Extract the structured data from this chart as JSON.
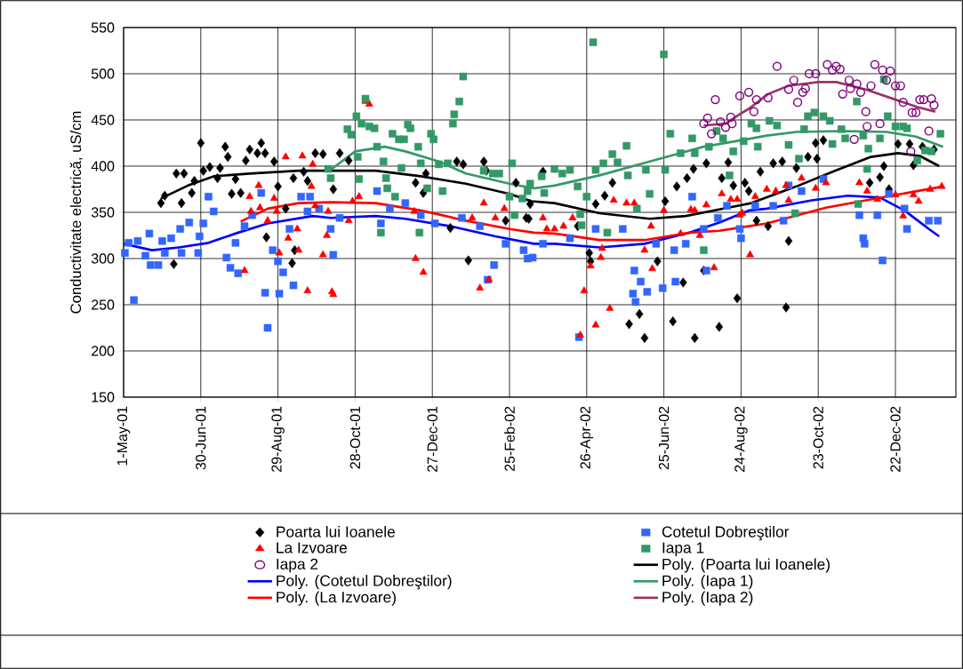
{
  "chart_data": {
    "type": "scatter",
    "ylabel": "Conductivitate electrică, uS/cm",
    "xlim": [
      "2001-05-01",
      "2003-02-07"
    ],
    "ylim": [
      150,
      550
    ],
    "xticks": [
      {
        "value": "2001-05-01",
        "label": "1-May-01"
      },
      {
        "value": "2001-06-30",
        "label": "30-Jun-01"
      },
      {
        "value": "2001-08-29",
        "label": "29-Aug-01"
      },
      {
        "value": "2001-10-28",
        "label": "28-Oct-01"
      },
      {
        "value": "2001-12-27",
        "label": "27-Dec-01"
      },
      {
        "value": "2002-02-25",
        "label": "25-Feb-02"
      },
      {
        "value": "2002-04-26",
        "label": "26-Apr-02"
      },
      {
        "value": "2002-06-25",
        "label": "25-Jun-02"
      },
      {
        "value": "2002-08-24",
        "label": "24-Aug-02"
      },
      {
        "value": "2002-10-23",
        "label": "23-Oct-02"
      },
      {
        "value": "2002-12-22",
        "label": "22-Dec-02"
      }
    ],
    "yticks": [
      150,
      200,
      250,
      300,
      350,
      400,
      450,
      500,
      550
    ],
    "grid": true,
    "legend": "bottom",
    "series": [
      {
        "name": "Poarta lui Ioanele",
        "marker": "diamond",
        "color": "#000000",
        "x": [
          "2001-05-30",
          "2001-06-02",
          "2001-06-09",
          "2001-06-11",
          "2001-06-15",
          "2001-06-17",
          "2001-06-23",
          "2001-06-25",
          "2001-06-30",
          "2001-07-02",
          "2001-07-07",
          "2001-07-13",
          "2001-07-15",
          "2001-07-19",
          "2001-07-21",
          "2001-07-24",
          "2001-07-27",
          "2001-07-31",
          "2001-08-04",
          "2001-08-07",
          "2001-08-13",
          "2001-08-16",
          "2001-08-19",
          "2001-08-20",
          "2001-08-26",
          "2001-08-29",
          "2001-09-04",
          "2001-09-09",
          "2001-09-10",
          "2001-09-11",
          "2001-09-18",
          "2001-09-21",
          "2001-09-27",
          "2001-10-03",
          "2001-10-11",
          "2001-10-16",
          "2001-10-23",
          "2001-12-14",
          "2001-12-20",
          "2001-12-22",
          "2002-01-10",
          "2002-01-15",
          "2002-01-20",
          "2002-01-24",
          "2002-02-05",
          "2002-02-07",
          "2002-02-22",
          "2002-03-02",
          "2002-03-10",
          "2002-03-12",
          "2002-03-13",
          "2002-03-23",
          "2002-04-19",
          "2002-04-28",
          "2002-04-29",
          "2002-05-03",
          "2002-05-10",
          "2002-05-16",
          "2002-05-29",
          "2002-06-06",
          "2002-06-10",
          "2002-06-20",
          "2002-06-26",
          "2002-07-02",
          "2002-07-05",
          "2002-07-10",
          "2002-07-13",
          "2002-07-18",
          "2002-07-19",
          "2002-07-26",
          "2002-07-28",
          "2002-08-07",
          "2002-08-09",
          "2002-08-14",
          "2002-08-18",
          "2002-08-21",
          "2002-08-27",
          "2002-08-30",
          "2002-09-05",
          "2002-09-08",
          "2002-09-14",
          "2002-09-18",
          "2002-09-25",
          "2002-09-28",
          "2002-09-30",
          "2002-10-06",
          "2002-10-15",
          "2002-10-21",
          "2002-10-22",
          "2002-10-27",
          "2002-12-02",
          "2002-12-10",
          "2002-12-13",
          "2002-12-17",
          "2002-12-24",
          "2003-01-02",
          "2003-01-05",
          "2003-01-12",
          "2003-01-21"
        ],
        "values": [
          360,
          368,
          294,
          392,
          360,
          392,
          371,
          384,
          425,
          395,
          399,
          387,
          398,
          421,
          410,
          370,
          386,
          371,
          406,
          418,
          414,
          425,
          414,
          323,
          405,
          378,
          354,
          295,
          387,
          309,
          394,
          384,
          414,
          413,
          375,
          414,
          406,
          382,
          371,
          392,
          333,
          405,
          402,
          298,
          405,
          395,
          341,
          382,
          344,
          343,
          359,
          394,
          335,
          306,
          297,
          359,
          368,
          382,
          229,
          240,
          214,
          297,
          362,
          232,
          378,
          274,
          387,
          397,
          214,
          287,
          403,
          226,
          387,
          404,
          379,
          257,
          382,
          373,
          341,
          394,
          335,
          403,
          405,
          247,
          319,
          398,
          410,
          425,
          408,
          428,
          382,
          388,
          400,
          375,
          424,
          424,
          401,
          421,
          418
        ]
      },
      {
        "name": "Cotetul Dobreştilor",
        "marker": "square",
        "color": "#3366ff",
        "x": [
          "2001-05-02",
          "2001-05-05",
          "2001-05-09",
          "2001-05-12",
          "2001-05-18",
          "2001-05-21",
          "2001-05-22",
          "2001-05-28",
          "2001-05-31",
          "2001-06-02",
          "2001-06-07",
          "2001-06-14",
          "2001-06-15",
          "2001-06-21",
          "2001-06-28",
          "2001-06-29",
          "2001-07-02",
          "2001-07-06",
          "2001-07-10",
          "2001-07-20",
          "2001-07-23",
          "2001-07-27",
          "2001-07-29",
          "2001-08-03",
          "2001-08-09",
          "2001-08-16",
          "2001-08-19",
          "2001-08-21",
          "2001-08-25",
          "2001-08-29",
          "2001-08-30",
          "2001-09-02",
          "2001-09-07",
          "2001-09-10",
          "2001-09-16",
          "2001-09-21",
          "2001-09-23",
          "2001-09-30",
          "2001-10-09",
          "2001-10-11",
          "2001-10-16",
          "2001-11-14",
          "2001-11-17",
          "2001-11-24",
          "2001-12-06",
          "2001-12-18",
          "2001-12-29",
          "2002-01-19",
          "2002-02-02",
          "2002-02-08",
          "2002-02-13",
          "2002-02-22",
          "2002-03-08",
          "2002-03-11",
          "2002-03-15",
          "2002-03-23",
          "2002-04-13",
          "2002-04-20",
          "2002-05-03",
          "2002-05-24",
          "2002-06-01",
          "2002-06-02",
          "2002-06-03",
          "2002-06-07",
          "2002-06-12",
          "2002-06-19",
          "2002-06-24",
          "2002-07-03",
          "2002-07-04",
          "2002-07-12",
          "2002-07-17",
          "2002-07-26",
          "2002-07-28",
          "2002-08-06",
          "2002-08-13",
          "2002-08-23",
          "2002-08-24",
          "2002-09-04",
          "2002-09-18",
          "2002-09-26",
          "2002-09-30",
          "2002-10-10",
          "2002-10-27",
          "2002-11-24",
          "2002-11-27",
          "2002-11-28",
          "2002-12-08",
          "2002-12-12",
          "2002-12-17",
          "2002-12-29",
          "2002-12-31",
          "2003-01-17",
          "2003-01-24"
        ],
        "values": [
          306,
          317,
          255,
          319,
          303,
          327,
          293,
          293,
          319,
          306,
          322,
          332,
          306,
          339,
          306,
          324,
          338,
          367,
          351,
          301,
          290,
          317,
          284,
          335,
          347,
          371,
          263,
          225,
          309,
          297,
          262,
          285,
          332,
          271,
          367,
          351,
          367,
          354,
          332,
          304,
          344,
          373,
          338,
          354,
          360,
          347,
          338,
          344,
          335,
          277,
          293,
          316,
          309,
          300,
          301,
          316,
          322,
          215,
          332,
          332,
          262,
          287,
          253,
          275,
          264,
          316,
          268,
          309,
          275,
          316,
          367,
          332,
          287,
          344,
          357,
          332,
          322,
          357,
          357,
          341,
          379,
          373,
          386,
          347,
          322,
          316,
          347,
          298,
          370,
          354,
          332,
          341,
          341
        ]
      },
      {
        "name": "La Izvoare",
        "marker": "triangle",
        "color": "#ff0000",
        "x": [
          "2001-08-03",
          "2001-08-07",
          "2001-08-08",
          "2001-08-14",
          "2001-08-15",
          "2001-08-21",
          "2001-08-26",
          "2001-08-28",
          "2001-08-30",
          "2001-09-04",
          "2001-09-06",
          "2001-09-13",
          "2001-09-14",
          "2001-09-17",
          "2001-09-21",
          "2001-09-24",
          "2001-09-25",
          "2001-09-27",
          "2001-10-03",
          "2001-10-06",
          "2001-10-07",
          "2001-10-10",
          "2001-10-11",
          "2001-10-23",
          "2001-10-26",
          "2001-10-31",
          "2001-11-05",
          "2001-11-08",
          "2001-12-13",
          "2001-12-14",
          "2001-12-20",
          "2002-01-27",
          "2002-02-02",
          "2002-02-05",
          "2002-02-09",
          "2002-02-14",
          "2002-02-21",
          "2002-03-23",
          "2002-03-26",
          "2002-04-01",
          "2002-04-08",
          "2002-04-15",
          "2002-04-21",
          "2002-04-24",
          "2002-04-29",
          "2002-05-03",
          "2002-05-07",
          "2002-05-08",
          "2002-05-14",
          "2002-05-17",
          "2002-05-27",
          "2002-06-02",
          "2002-06-10",
          "2002-06-15",
          "2002-06-16",
          "2002-06-25",
          "2002-07-08",
          "2002-07-16",
          "2002-07-19",
          "2002-07-23",
          "2002-07-28",
          "2002-08-03",
          "2002-08-09",
          "2002-08-16",
          "2002-08-21",
          "2002-08-23",
          "2002-08-25",
          "2002-08-31",
          "2002-09-04",
          "2002-09-13",
          "2002-09-20",
          "2002-09-28",
          "2002-09-30",
          "2002-10-10",
          "2002-10-21",
          "2002-10-29",
          "2002-11-24",
          "2002-11-30",
          "2002-12-08",
          "2002-12-22",
          "2002-12-28",
          "2003-01-05",
          "2003-01-09",
          "2003-01-18",
          "2003-01-27"
        ],
        "values": [
          287,
          367,
          351,
          379,
          355,
          341,
          365,
          351,
          306,
          410,
          322,
          332,
          309,
          411,
          265,
          378,
          402,
          357,
          304,
          325,
          351,
          264,
          261,
          341,
          362,
          367,
          470,
          467,
          351,
          300,
          285,
          344,
          268,
          360,
          277,
          344,
          354,
          344,
          332,
          332,
          335,
          344,
          217,
          265,
          292,
          228,
          301,
          311,
          246,
          363,
          360,
          360,
          309,
          335,
          289,
          352,
          327,
          353,
          352,
          325,
          358,
          290,
          370,
          364,
          364,
          347,
          349,
          304,
          367,
          375,
          373,
          379,
          363,
          387,
          376,
          382,
          382,
          373,
          364,
          369,
          346,
          369,
          362,
          375,
          378
        ]
      },
      {
        "name": "Iapa 1",
        "marker": "square",
        "color": "#339966",
        "x": [
          "2001-10-07",
          "2001-10-09",
          "2001-10-22",
          "2001-10-25",
          "2001-10-29",
          "2001-10-30",
          "2001-10-31",
          "2001-11-02",
          "2001-11-05",
          "2001-11-08",
          "2001-11-12",
          "2001-11-14",
          "2001-11-17",
          "2001-11-19",
          "2001-11-21",
          "2001-11-22",
          "2001-11-26",
          "2001-11-28",
          "2001-12-01",
          "2001-12-03",
          "2001-12-05",
          "2001-12-08",
          "2001-12-10",
          "2001-12-16",
          "2001-12-17",
          "2001-12-18",
          "2001-12-23",
          "2001-12-26",
          "2001-12-28",
          "2002-01-01",
          "2002-01-04",
          "2002-01-08",
          "2002-01-12",
          "2002-01-13",
          "2002-01-17",
          "2002-01-20",
          "2002-02-05",
          "2002-02-12",
          "2002-02-17",
          "2002-02-25",
          "2002-02-27",
          "2002-03-01",
          "2002-03-07",
          "2002-03-11",
          "2002-03-13",
          "2002-03-22",
          "2002-03-24",
          "2002-04-01",
          "2002-04-07",
          "2002-04-13",
          "2002-04-19",
          "2002-04-21",
          "2002-04-22",
          "2002-04-26",
          "2002-05-01",
          "2002-05-03",
          "2002-05-09",
          "2002-05-12",
          "2002-05-16",
          "2002-05-20",
          "2002-05-27",
          "2002-05-28",
          "2002-06-04",
          "2002-06-11",
          "2002-06-14",
          "2002-06-25",
          "2002-06-26",
          "2002-06-30",
          "2002-07-08",
          "2002-07-17",
          "2002-07-19",
          "2002-07-26",
          "2002-07-30",
          "2002-08-05",
          "2002-08-10",
          "2002-08-15",
          "2002-08-18",
          "2002-08-26",
          "2002-09-01",
          "2002-09-05",
          "2002-09-06",
          "2002-09-15",
          "2002-09-21",
          "2002-09-30",
          "2002-10-05",
          "2002-10-08",
          "2002-10-12",
          "2002-10-15",
          "2002-10-20",
          "2002-10-27",
          "2002-11-01",
          "2002-11-03",
          "2002-11-10",
          "2002-11-13",
          "2002-11-22",
          "2002-11-23",
          "2002-11-27",
          "2002-11-30",
          "2002-12-01",
          "2002-12-10",
          "2002-12-13",
          "2002-12-16",
          "2002-12-22",
          "2002-12-28",
          "2002-12-31",
          "2003-01-08",
          "2003-01-14",
          "2003-01-19",
          "2003-01-26"
        ],
        "values": [
          397,
          387,
          440,
          434,
          454,
          410,
          386,
          446,
          473,
          443,
          441,
          421,
          328,
          405,
          387,
          376,
          435,
          367,
          429,
          398,
          429,
          445,
          441,
          421,
          328,
          403,
          376,
          435,
          429,
          402,
          373,
          403,
          446,
          456,
          470,
          497,
          395,
          392,
          392,
          367,
          403,
          347,
          365,
          373,
          381,
          389,
          371,
          397,
          392,
          396,
          378,
          348,
          336,
          367,
          534,
          396,
          403,
          328,
          413,
          404,
          422,
          390,
          354,
          396,
          370,
          521,
          396,
          435,
          414,
          430,
          414,
          309,
          421,
          438,
          430,
          390,
          416,
          427,
          446,
          441,
          421,
          449,
          444,
          423,
          349,
          408,
          440,
          454,
          458,
          454,
          449,
          424,
          440,
          430,
          470,
          359,
          433,
          397,
          419,
          430,
          494,
          454,
          443,
          443,
          441,
          406,
          417,
          416,
          435
        ]
      },
      {
        "name": "Iapa 2",
        "marker": "circle",
        "color": "#800080",
        "x": [
          "2002-07-26",
          "2002-07-29",
          "2002-08-01",
          "2002-08-04",
          "2002-08-08",
          "2002-08-12",
          "2002-08-16",
          "2002-08-17",
          "2002-08-23",
          "2002-08-30",
          "2002-09-03",
          "2002-09-05",
          "2002-09-14",
          "2002-09-21",
          "2002-09-30",
          "2002-10-04",
          "2002-10-07",
          "2002-10-11",
          "2002-10-13",
          "2002-10-16",
          "2002-10-21",
          "2002-10-30",
          "2002-11-03",
          "2002-11-06",
          "2002-11-09",
          "2002-11-11",
          "2002-11-16",
          "2002-11-17",
          "2002-11-20",
          "2002-11-22",
          "2002-11-25",
          "2002-11-29",
          "2002-11-30",
          "2002-12-03",
          "2002-12-06",
          "2002-12-10",
          "2002-12-12",
          "2002-12-15",
          "2002-12-18",
          "2002-12-22",
          "2002-12-26",
          "2002-12-28",
          "2003-01-03",
          "2003-01-04",
          "2003-01-07",
          "2003-01-10",
          "2003-01-13",
          "2003-01-17",
          "2003-01-19",
          "2003-01-21"
        ],
        "values": [
          446,
          452,
          435,
          472,
          448,
          442,
          453,
          446,
          476,
          480,
          459,
          472,
          474,
          508,
          483,
          493,
          469,
          480,
          484,
          500,
          500,
          510,
          504,
          508,
          505,
          478,
          493,
          484,
          429,
          489,
          480,
          459,
          443,
          487,
          510,
          446,
          504,
          493,
          503,
          487,
          487,
          469,
          416,
          458,
          458,
          472,
          472,
          438,
          473,
          466
        ]
      },
      {
        "name": "Poly. (Poarta lui Ioanele)",
        "type": "line",
        "color": "#000000",
        "x": [
          "2001-05-30",
          "2001-06-20",
          "2001-07-10",
          "2001-08-07",
          "2001-09-14",
          "2001-10-09",
          "2001-11-13",
          "2001-12-18",
          "2002-01-22",
          "2002-02-25",
          "2002-03-14",
          "2002-04-01",
          "2002-05-06",
          "2002-06-14",
          "2002-07-12",
          "2002-08-14",
          "2002-09-01",
          "2002-10-06",
          "2002-11-05",
          "2002-12-03",
          "2002-12-24",
          "2003-01-10",
          "2003-01-25"
        ],
        "values": [
          365,
          379,
          389,
          392,
          395,
          395,
          395,
          389,
          381,
          370,
          362,
          360,
          349,
          343,
          346,
          355,
          360,
          378,
          395,
          410,
          414,
          411,
          400
        ]
      },
      {
        "name": "Poly. (Cotetul Dobreştilor)",
        "type": "line",
        "color": "#0000ff",
        "x": [
          "2001-05-01",
          "2001-05-23",
          "2001-06-13",
          "2001-07-06",
          "2001-07-29",
          "2001-08-21",
          "2001-09-25",
          "2001-10-09",
          "2001-11-13",
          "2001-12-06",
          "2002-01-10",
          "2002-02-14",
          "2002-03-16",
          "2002-04-01",
          "2002-05-06",
          "2002-06-10",
          "2002-07-15",
          "2002-08-07",
          "2002-08-30",
          "2002-09-13",
          "2002-10-18",
          "2002-11-15",
          "2002-12-10",
          "2002-12-29",
          "2003-01-17",
          "2003-01-25"
        ],
        "values": [
          316,
          309,
          312,
          317,
          328,
          338,
          346,
          344,
          346,
          343,
          335,
          324,
          316,
          316,
          312,
          316,
          328,
          339,
          352,
          354,
          363,
          368,
          366,
          352,
          332,
          324
        ]
      },
      {
        "name": "Poly. (Iapa 1)",
        "type": "line",
        "color": "#339966",
        "x": [
          "2001-10-07",
          "2001-10-28",
          "2001-11-20",
          "2001-12-06",
          "2002-01-01",
          "2002-01-22",
          "2002-02-25",
          "2002-03-16",
          "2002-04-01",
          "2002-05-06",
          "2002-06-14",
          "2002-07-26",
          "2002-08-28",
          "2002-09-13",
          "2002-10-06",
          "2002-11-10",
          "2002-12-15",
          "2003-01-07",
          "2003-01-28"
        ],
        "values": [
          394,
          416,
          421,
          416,
          405,
          392,
          381,
          376,
          379,
          390,
          405,
          421,
          429,
          433,
          437,
          438,
          437,
          432,
          421
        ]
      },
      {
        "name": "Poly. (La Izvoare)",
        "type": "line",
        "color": "#ff0000",
        "x": [
          "2001-07-31",
          "2001-08-21",
          "2001-09-14",
          "2001-10-09",
          "2001-11-13",
          "2001-12-18",
          "2002-01-22",
          "2002-02-25",
          "2002-03-16",
          "2002-04-01",
          "2002-05-06",
          "2002-06-10",
          "2002-07-15",
          "2002-08-07",
          "2002-08-21",
          "2002-09-13",
          "2002-10-29",
          "2002-12-15",
          "2003-01-28"
        ],
        "values": [
          340,
          354,
          360,
          361,
          360,
          352,
          341,
          332,
          328,
          327,
          320,
          320,
          328,
          330,
          333,
          338,
          355,
          367,
          378
        ]
      },
      {
        "name": "Poly. (Iapa 2)",
        "type": "line",
        "color": "#993366",
        "x": [
          "2002-07-26",
          "2002-08-12",
          "2002-08-24",
          "2002-08-30",
          "2002-09-14",
          "2002-09-30",
          "2002-10-23",
          "2002-11-06",
          "2002-11-29",
          "2002-12-22",
          "2003-01-08",
          "2003-01-22"
        ],
        "values": [
          444,
          446,
          457,
          462,
          478,
          487,
          491,
          491,
          483,
          472,
          464,
          459
        ]
      }
    ]
  }
}
